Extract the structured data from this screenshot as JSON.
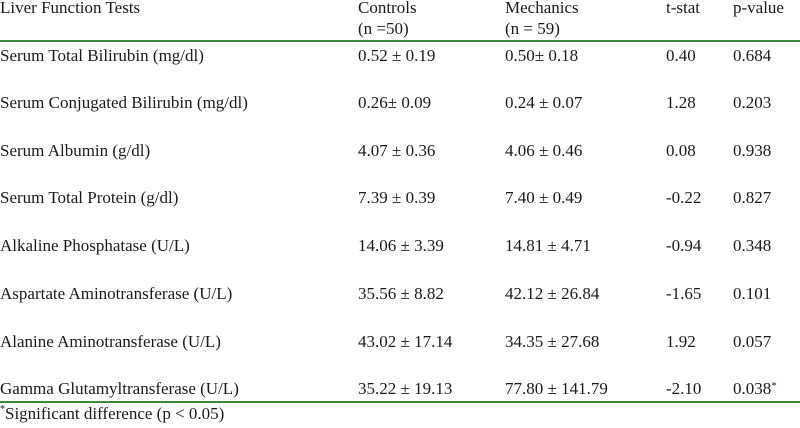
{
  "header": {
    "col1": "Liver Function Tests",
    "col2_line1": "Controls",
    "col2_line2": "(n =50)",
    "col3_line1": "Mechanics",
    "col3_line2": "(n = 59)",
    "col4": "t-stat",
    "col5": "p-value"
  },
  "rows": [
    {
      "test": "Serum Total Bilirubin (mg/dl)",
      "controls": "0.52 ± 0.19",
      "mechanics": "0.50± 0.18",
      "t_stat": "0.40",
      "p_value": "0.684",
      "p_mark": ""
    },
    {
      "test": "Serum Conjugated Bilirubin (mg/dl)",
      "controls": "0.26± 0.09",
      "mechanics": "0.24 ± 0.07",
      "t_stat": "1.28",
      "p_value": "0.203",
      "p_mark": ""
    },
    {
      "test": "Serum Albumin (g/dl)",
      "controls": "4.07 ± 0.36",
      "mechanics": "4.06 ± 0.46",
      "t_stat": "0.08",
      "p_value": "0.938",
      "p_mark": ""
    },
    {
      "test": "Serum Total Protein (g/dl)",
      "controls": "7.39 ± 0.39",
      "mechanics": "7.40 ± 0.49",
      "t_stat": "-0.22",
      "p_value": "0.827",
      "p_mark": ""
    },
    {
      "test": "Alkaline Phosphatase (U/L)",
      "controls": "14.06 ± 3.39",
      "mechanics": "14.81 ± 4.71",
      "t_stat": "-0.94",
      "p_value": "0.348",
      "p_mark": ""
    },
    {
      "test": "Aspartate Aminotransferase (U/L)",
      "controls": "35.56 ± 8.82",
      "mechanics": "42.12 ± 26.84",
      "t_stat": "-1.65",
      "p_value": "0.101",
      "p_mark": ""
    },
    {
      "test": "Alanine Aminotransferase (U/L)",
      "controls": "43.02 ± 17.14",
      "mechanics": "34.35 ± 27.68",
      "t_stat": "1.92",
      "p_value": "0.057",
      "p_mark": ""
    },
    {
      "test": "Gamma Glutamyltransferase (U/L)",
      "controls": "35.22 ± 19.13",
      "mechanics": "77.80 ± 141.79",
      "t_stat": "-2.10",
      "p_value": "0.038",
      "p_mark": "*"
    }
  ],
  "footnote": {
    "mark": "*",
    "text": "Significant difference (p < 0.05)"
  },
  "colors": {
    "rule": "#3a8a3a",
    "text": "#1a1a1a"
  }
}
